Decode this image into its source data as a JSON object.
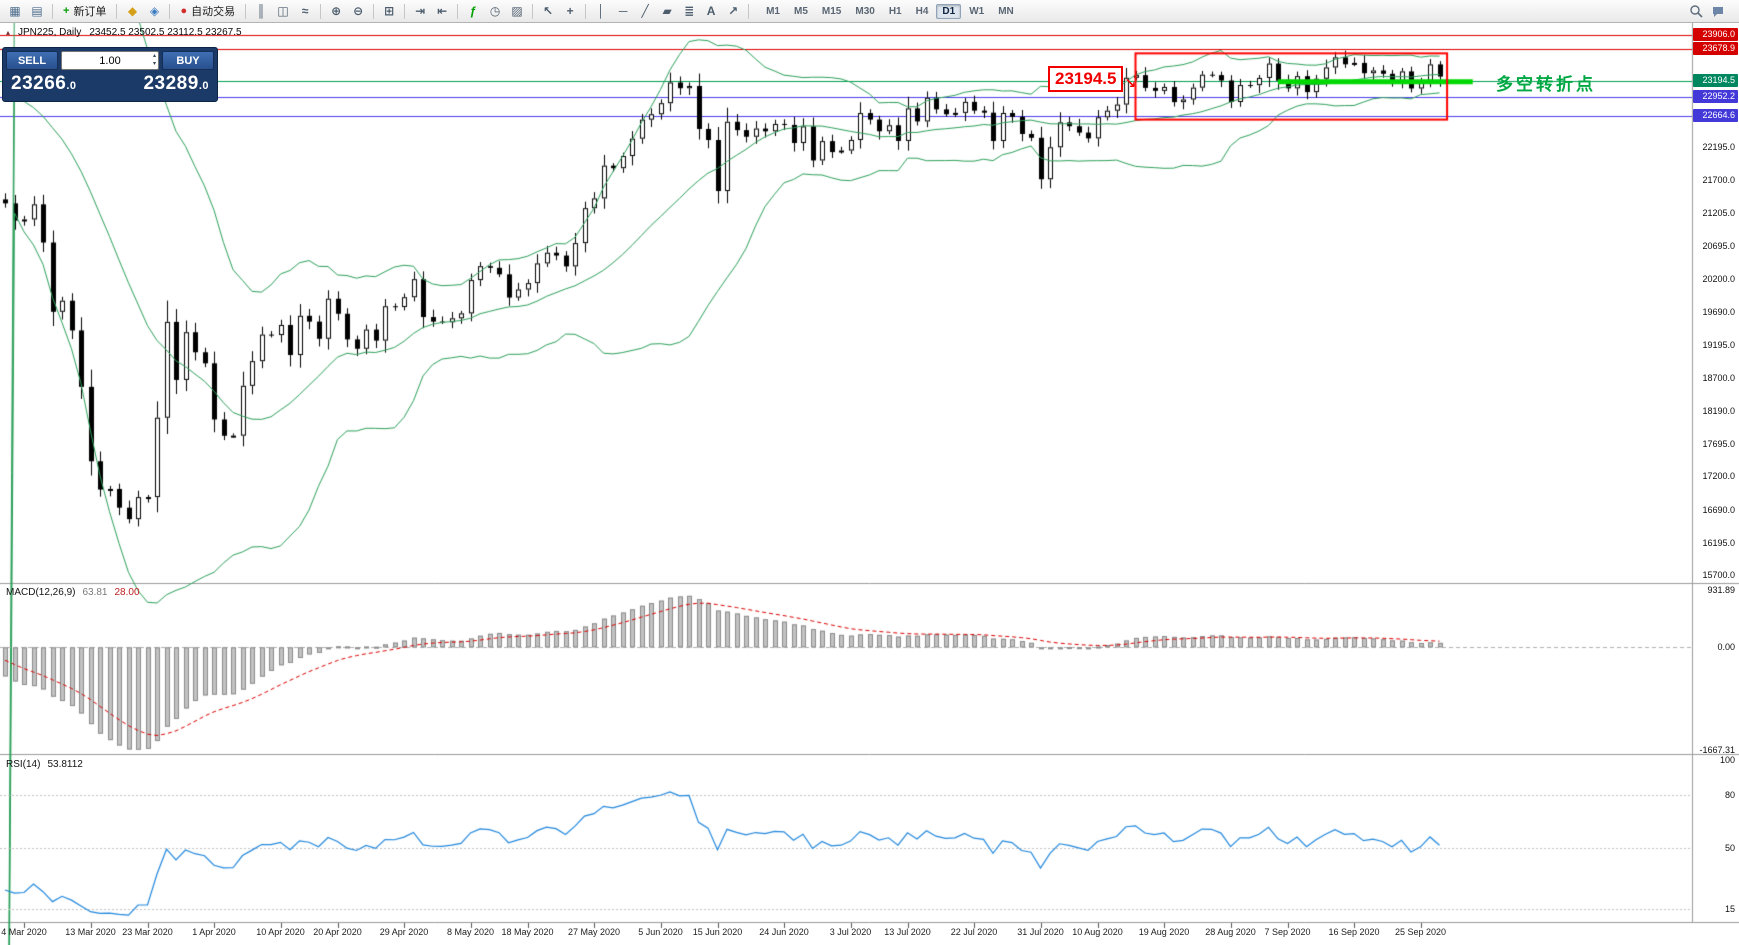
{
  "colors": {
    "bull": "#ffffff",
    "bear": "#000000",
    "bollinger": "#2ca05a",
    "hline_red": "#e00000",
    "hline_blue": "#4b3bec",
    "hline_green": "#00a050",
    "box_red": "#ff0000",
    "segment_green": "#00d800",
    "macd_hist": "#c2c2c2",
    "macd_hist_border": "#8c8c8c",
    "macd_signal": "#dd0000",
    "rsi_line": "#2288dd",
    "annotation_green": "#00a843",
    "label_red_bg": "#d40000",
    "label_blue_bg": "#4338d8",
    "label_green_bg": "#00875f"
  },
  "toolbar": {
    "groups": [
      {
        "items": [
          {
            "name": "new-chart",
            "glyph": "▦",
            "color": "#4d6d8d"
          },
          {
            "name": "profiles",
            "glyph": "▤",
            "color": "#4d6d8d"
          }
        ]
      },
      {
        "items": [
          {
            "name": "new-order",
            "glyph": "+",
            "color": "#00a000",
            "label": "新订单"
          }
        ]
      },
      {
        "items": [
          {
            "name": "metaeditor",
            "glyph": "◆",
            "color": "#d4a017"
          },
          {
            "name": "market-watch",
            "glyph": "◈",
            "color": "#3a7abf"
          }
        ]
      },
      {
        "items": [
          {
            "name": "autotrading",
            "glyph": "●",
            "color": "#d22c2c",
            "label": "自动交易"
          }
        ]
      },
      {
        "items": [
          {
            "name": "bar-chart",
            "glyph": "║",
            "color": "#4d5d6d"
          },
          {
            "name": "candlestick-chart",
            "glyph": "◫",
            "color": "#4d5d6d"
          },
          {
            "name": "line-chart",
            "glyph": "≈",
            "color": "#4d5d6d"
          }
        ]
      },
      {
        "items": [
          {
            "name": "zoom-in",
            "glyph": "⊕",
            "color": "#4d5d6d"
          },
          {
            "name": "zoom-out",
            "glyph": "⊖",
            "color": "#4d5d6d"
          }
        ]
      },
      {
        "items": [
          {
            "name": "tile-windows",
            "glyph": "⊞",
            "color": "#4d5d6d"
          }
        ]
      },
      {
        "items": [
          {
            "name": "auto-scroll",
            "glyph": "⇥",
            "color": "#4d5d6d"
          },
          {
            "name": "chart-shift",
            "glyph": "⇤",
            "color": "#4d5d6d"
          }
        ]
      },
      {
        "items": [
          {
            "name": "indicators",
            "glyph": "ƒ",
            "color": "#00a000"
          },
          {
            "name": "periods",
            "glyph": "◷",
            "color": "#4d5d6d"
          },
          {
            "name": "templates",
            "glyph": "▨",
            "color": "#4d5d6d"
          }
        ]
      },
      {
        "items": [
          {
            "name": "cursor",
            "glyph": "↖",
            "color": "#4d5d6d"
          },
          {
            "name": "crosshair",
            "glyph": "+",
            "color": "#4d5d6d"
          }
        ]
      },
      {
        "items": [
          {
            "name": "vertical-line",
            "glyph": "│",
            "color": "#4d5d6d"
          },
          {
            "name": "horizontal-line",
            "glyph": "─",
            "color": "#4d5d6d"
          },
          {
            "name": "trendline",
            "glyph": "╱",
            "color": "#4d5d6d"
          },
          {
            "name": "equidistant-channel",
            "glyph": "▰",
            "color": "#4d5d6d"
          },
          {
            "name": "fibonacci",
            "glyph": "≣",
            "color": "#4d5d6d"
          },
          {
            "name": "text-label",
            "glyph": "A",
            "color": "#4d5d6d"
          },
          {
            "name": "arrows",
            "glyph": "↗",
            "color": "#4d5d6d"
          }
        ]
      }
    ],
    "timeframes": [
      "M1",
      "M5",
      "M15",
      "M30",
      "H1",
      "H4",
      "D1",
      "W1",
      "MN"
    ],
    "active_timeframe": "D1"
  },
  "chart": {
    "symbol_title": "JPN225, Daily",
    "ohlc_text": "23452.5 23502.5 23112.5 23267.5",
    "one_click": {
      "sell_label": "SELL",
      "buy_label": "BUY",
      "volume": "1.00",
      "sell_main": "23266",
      "sell_dec": ".0",
      "buy_main": "23289",
      "buy_dec": ".0"
    }
  },
  "macd_panel": {
    "label": "MACD(12,26,9)",
    "value1": "63.81",
    "value2": "28.00",
    "scale_items": [
      {
        "text": "931.89",
        "value": 931.89
      },
      {
        "text": "0.00",
        "value": 0
      },
      {
        "text": "-1667.31",
        "value": -1667.31
      }
    ]
  },
  "rsi_panel": {
    "label": "RSI(14)",
    "value": "53.8112",
    "scale_items": [
      {
        "text": "100",
        "value": 100
      },
      {
        "text": "80",
        "value": 80
      },
      {
        "text": "50",
        "value": 50
      },
      {
        "text": "15",
        "value": 15
      }
    ]
  },
  "chart_data": {
    "type": "candlestick",
    "symbol": "JPN225",
    "timeframe": "Daily",
    "price_range": [
      15660,
      24035
    ],
    "price_ticks": [
      22195,
      21700,
      21205,
      20695,
      20200,
      19690,
      19195,
      18700,
      18190,
      17695,
      17200,
      16690,
      16195,
      15700
    ],
    "hlines": [
      {
        "price": 23906.0,
        "label": "23906.0",
        "color": "#e00000",
        "label_bg": "#d40000"
      },
      {
        "price": 23678.9,
        "label": "23678.9",
        "color": "#e00000",
        "label_bg": "#d40000"
      },
      {
        "price": 23194.5,
        "label": "23194.5",
        "color": "#00a050",
        "label_bg": "#00875f"
      },
      {
        "price": 22952.2,
        "label": "22952.2",
        "color": "#4b3bec",
        "label_bg": "#4338d8"
      },
      {
        "price": 22664.6,
        "label": "22664.6",
        "color": "#4b3bec",
        "label_bg": "#4338d8"
      }
    ],
    "x_labels": [
      {
        "text": "4 Mar 2020",
        "index": 2
      },
      {
        "text": "13 Mar 2020",
        "index": 9
      },
      {
        "text": "23 Mar 2020",
        "index": 15
      },
      {
        "text": "1 Apr 2020",
        "index": 22
      },
      {
        "text": "10 Apr 2020",
        "index": 29
      },
      {
        "text": "20 Apr 2020",
        "index": 35
      },
      {
        "text": "29 Apr 2020",
        "index": 42
      },
      {
        "text": "8 May 2020",
        "index": 49
      },
      {
        "text": "18 May 2020",
        "index": 55
      },
      {
        "text": "27 May 2020",
        "index": 62
      },
      {
        "text": "5 Jun 2020",
        "index": 69
      },
      {
        "text": "15 Jun 2020",
        "index": 75
      },
      {
        "text": "24 Jun 2020",
        "index": 82
      },
      {
        "text": "3 Jul 2020",
        "index": 89
      },
      {
        "text": "13 Jul 2020",
        "index": 95
      },
      {
        "text": "22 Jul 2020",
        "index": 102
      },
      {
        "text": "31 Jul 2020",
        "index": 109
      },
      {
        "text": "10 Aug 2020",
        "index": 115
      },
      {
        "text": "19 Aug 2020",
        "index": 122
      },
      {
        "text": "28 Aug 2020",
        "index": 129
      },
      {
        "text": "7 Sep 2020",
        "index": 135
      },
      {
        "text": "16 Sep 2020",
        "index": 142
      },
      {
        "text": "25 Sep 2020",
        "index": 149
      }
    ],
    "warmup_closes": [
      23600,
      23215,
      23380,
      23205,
      23320,
      23874,
      23828,
      23686,
      23804,
      23750,
      23861,
      23480,
      23390,
      23387,
      22605,
      22426,
      21948,
      21143
    ],
    "closes": [
      21344,
      21083,
      21100,
      21329,
      20750,
      19699,
      19867,
      19416,
      18560,
      17431,
      17002,
      17011,
      16727,
      16553,
      16887,
      16888,
      18092,
      19546,
      18665,
      19389,
      19085,
      18917,
      18065,
      17818,
      17820,
      18576,
      18950,
      19353,
      19346,
      19499,
      19043,
      19638,
      19550,
      19290,
      19897,
      19669,
      19280,
      19138,
      19429,
      19262,
      19783,
      19771,
      19920,
      20194,
      19619,
      19550,
      19540,
      19600,
      19675,
      20180,
      20391,
      20366,
      20267,
      19915,
      20037,
      20134,
      20433,
      20595,
      20552,
      20388,
      20741,
      21271,
      21419,
      21916,
      21878,
      22062,
      22326,
      22614,
      22696,
      22864,
      23178,
      23091,
      23125,
      22473,
      22305,
      21531,
      22582,
      22455,
      22355,
      22479,
      22437,
      22549,
      22534,
      22260,
      22512,
      21995,
      22288,
      22122,
      22146,
      22306,
      22714,
      22615,
      22438,
      22529,
      22291,
      22785,
      22587,
      22946,
      22770,
      22696,
      22717,
      22884,
      22751,
      22720,
      22290,
      22715,
      22657,
      22397,
      22339,
      21710,
      22195,
      22573,
      22514,
      22418,
      22330,
      22650,
      22750,
      22843,
      23249,
      23289,
      23096,
      23051,
      23110,
      22880,
      22920,
      23100,
      23296,
      23290,
      23208,
      22882,
      23139,
      23138,
      23247,
      23465,
      23205,
      23089,
      23274,
      23032,
      23235,
      23406,
      23559,
      23454,
      23475,
      23319,
      23360,
      23310,
      23200,
      23346,
      23087,
      23204,
      23452.5,
      23267.5
    ],
    "last_candle_ohlc": [
      23452.5,
      23502.5,
      23112.5,
      23267.5
    ],
    "indicators": {
      "bollinger": {
        "period": 20,
        "deviation": 2
      },
      "macd": {
        "fast": 12,
        "slow": 26,
        "signal": 9,
        "range": [
          -1667.31,
          931.89
        ]
      },
      "rsi": {
        "period": 14,
        "range": [
          10,
          100
        ],
        "levels": [
          80,
          50,
          15
        ]
      }
    },
    "annotations": {
      "red_box": {
        "index_from": 119,
        "index_to": 151.8,
        "price_top": 23620,
        "price_bottom": 22615
      },
      "green_segment": {
        "price": 23190,
        "index_from": 134,
        "index_to": 154.5
      },
      "callout": {
        "text": "23194.5"
      },
      "turning_point": {
        "text": "多空转折点"
      }
    }
  }
}
